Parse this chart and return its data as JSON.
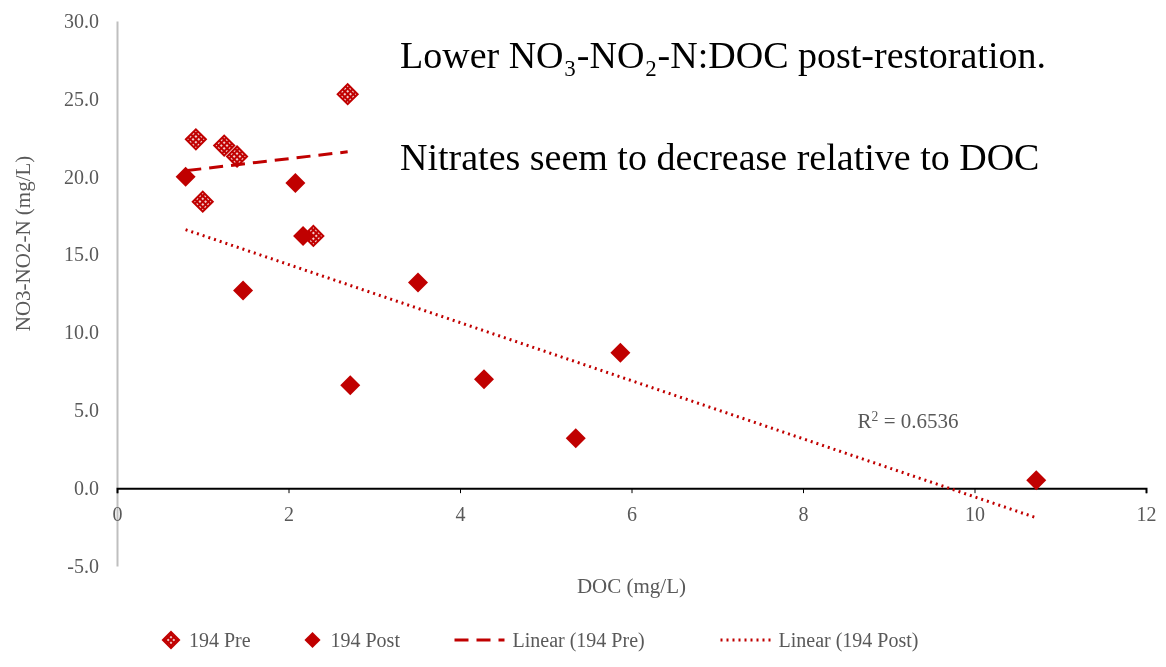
{
  "chart_data": {
    "type": "scatter",
    "xlabel": "DOC (mg/L)",
    "ylabel": "NO3-NO2-N (mg/L)",
    "xlim": [
      0,
      12
    ],
    "xticks": [
      0,
      2,
      4,
      6,
      8,
      10,
      12
    ],
    "ylim": [
      -5,
      30
    ],
    "yticks": [
      {
        "value": -5,
        "label": "-5.0"
      },
      {
        "value": 0,
        "label": "0.0"
      },
      {
        "value": 5,
        "label": "5.0"
      },
      {
        "value": 10,
        "label": "10.0"
      },
      {
        "value": 15,
        "label": "15.0"
      },
      {
        "value": 20,
        "label": "20.0"
      },
      {
        "value": 25,
        "label": "25.0"
      },
      {
        "value": 30,
        "label": "30.0"
      }
    ],
    "grid": false,
    "legend": "bottom",
    "series": [
      {
        "name": "194 Pre",
        "marker": "diamond",
        "color": "#c00000",
        "x": [
          0.92,
          1.25,
          1.4,
          1.0,
          2.69,
          2.29
        ],
        "values": [
          22.4,
          22.0,
          21.3,
          18.4,
          25.3,
          16.2
        ]
      },
      {
        "name": "194 Post",
        "marker": "diamond",
        "color": "#c00000",
        "x": [
          0.8,
          2.08,
          2.17,
          1.47,
          3.51,
          2.72,
          4.28,
          5.87,
          5.35,
          10.72
        ],
        "values": [
          20.0,
          19.6,
          16.2,
          12.7,
          13.2,
          6.6,
          7.0,
          8.7,
          3.2,
          0.5
        ]
      },
      {
        "name": "Linear (194 Pre)",
        "type": "line",
        "marker": "none",
        "line_style": "dashed",
        "color": "#c00000",
        "x": [
          0.82,
          2.69
        ],
        "values": [
          20.4,
          21.6
        ]
      },
      {
        "name": "Linear (194 Post)",
        "type": "line",
        "marker": "none",
        "line_style": "dotted",
        "color": "#c00000",
        "x": [
          0.8,
          10.72
        ],
        "values": [
          16.6,
          -1.9
        ]
      }
    ],
    "annotations": [
      "Lower NO₃-NO₂-N:DOC post-restoration.",
      "Nitrates seem to decrease relative to DOC",
      "R$^{2}$ = 0.6536"
    ]
  }
}
